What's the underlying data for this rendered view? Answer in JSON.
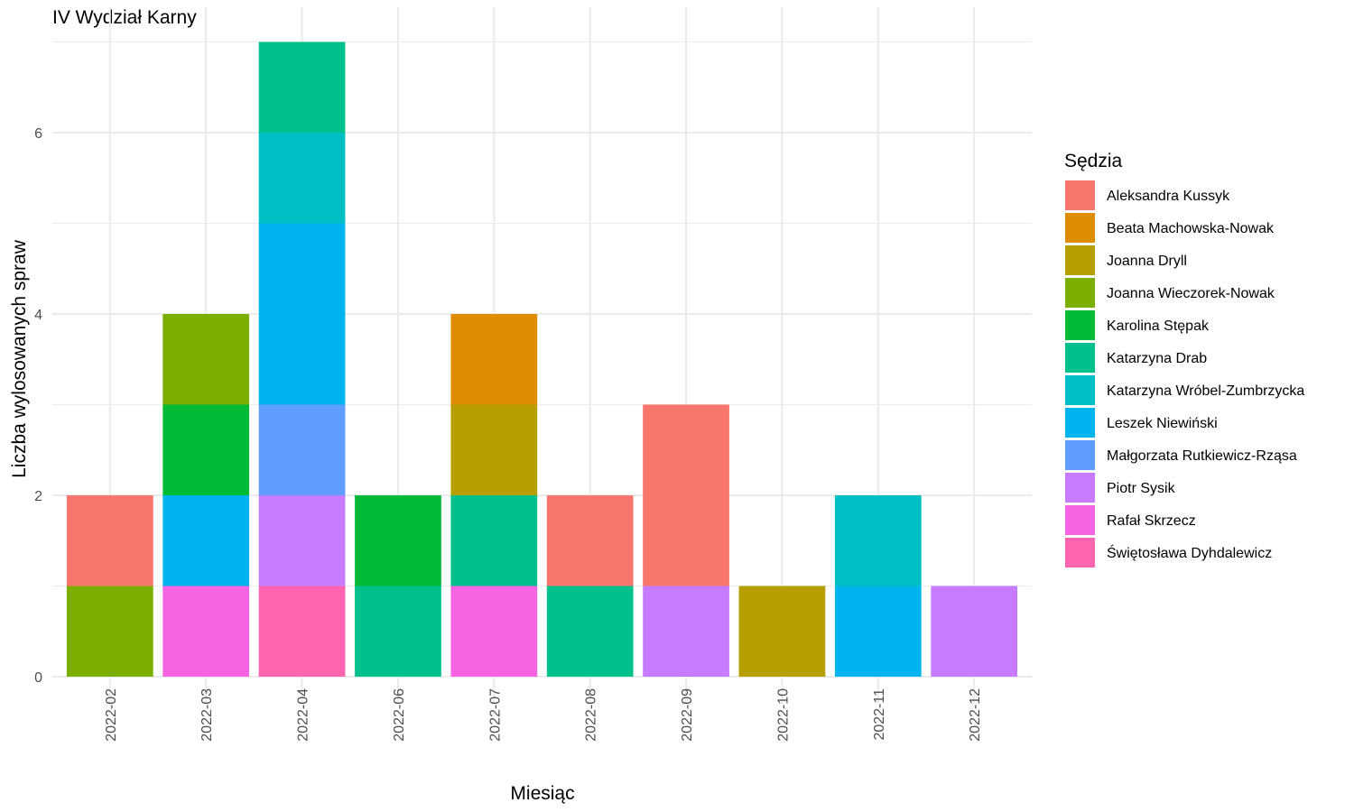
{
  "chart_data": {
    "type": "bar",
    "stacked": true,
    "title": "IV Wydział Karny",
    "xlabel": "Miesiąc",
    "ylabel": "Liczba wylosowanych spraw",
    "ylim": [
      0,
      7
    ],
    "yticks": [
      0,
      2,
      4,
      6
    ],
    "grid": true,
    "legend_position": "right",
    "legend_title": "Sędzia",
    "categories": [
      "2022-02",
      "2022-03",
      "2022-04",
      "2022-06",
      "2022-07",
      "2022-08",
      "2022-09",
      "2022-10",
      "2022-11",
      "2022-12"
    ],
    "series": [
      {
        "name": "Aleksandra Kussyk",
        "color": "#F8766D",
        "values": [
          1,
          0,
          0,
          0,
          0,
          1,
          2,
          0,
          0,
          0
        ]
      },
      {
        "name": "Beata Machowska-Nowak",
        "color": "#DE8C00",
        "values": [
          0,
          0,
          0,
          0,
          1,
          0,
          0,
          0,
          0,
          0
        ]
      },
      {
        "name": "Joanna Dryll",
        "color": "#B79F00",
        "values": [
          0,
          0,
          0,
          0,
          1,
          0,
          0,
          1,
          0,
          0
        ]
      },
      {
        "name": "Joanna Wieczorek-Nowak",
        "color": "#7CAE00",
        "values": [
          1,
          1,
          0,
          0,
          0,
          0,
          0,
          0,
          0,
          0
        ]
      },
      {
        "name": "Karolina Stępak",
        "color": "#00BA38",
        "values": [
          0,
          1,
          0,
          1,
          0,
          0,
          0,
          0,
          0,
          0
        ]
      },
      {
        "name": "Katarzyna Drab",
        "color": "#00C08B",
        "values": [
          0,
          0,
          1,
          1,
          1,
          1,
          0,
          0,
          0,
          0
        ]
      },
      {
        "name": "Katarzyna Wróbel-Zumbrzycka",
        "color": "#00BFC4",
        "values": [
          0,
          0,
          1,
          0,
          0,
          0,
          0,
          0,
          1,
          0
        ]
      },
      {
        "name": "Leszek Niewiński",
        "color": "#00B4F0",
        "values": [
          0,
          1,
          2,
          0,
          0,
          0,
          0,
          0,
          1,
          0
        ]
      },
      {
        "name": "Małgorzata Rutkiewicz-Rząsa",
        "color": "#619CFF",
        "values": [
          0,
          0,
          1,
          0,
          0,
          0,
          0,
          0,
          0,
          0
        ]
      },
      {
        "name": "Piotr Sysik",
        "color": "#C77CFF",
        "values": [
          0,
          0,
          1,
          0,
          0,
          0,
          1,
          0,
          0,
          1
        ]
      },
      {
        "name": "Rafał Skrzecz",
        "color": "#F564E3",
        "values": [
          0,
          1,
          0,
          0,
          1,
          0,
          0,
          0,
          0,
          0
        ]
      },
      {
        "name": "Świętosława Dyhdalewicz",
        "color": "#FF64B0",
        "values": [
          0,
          0,
          1,
          0,
          0,
          0,
          0,
          0,
          0,
          0
        ]
      }
    ]
  }
}
